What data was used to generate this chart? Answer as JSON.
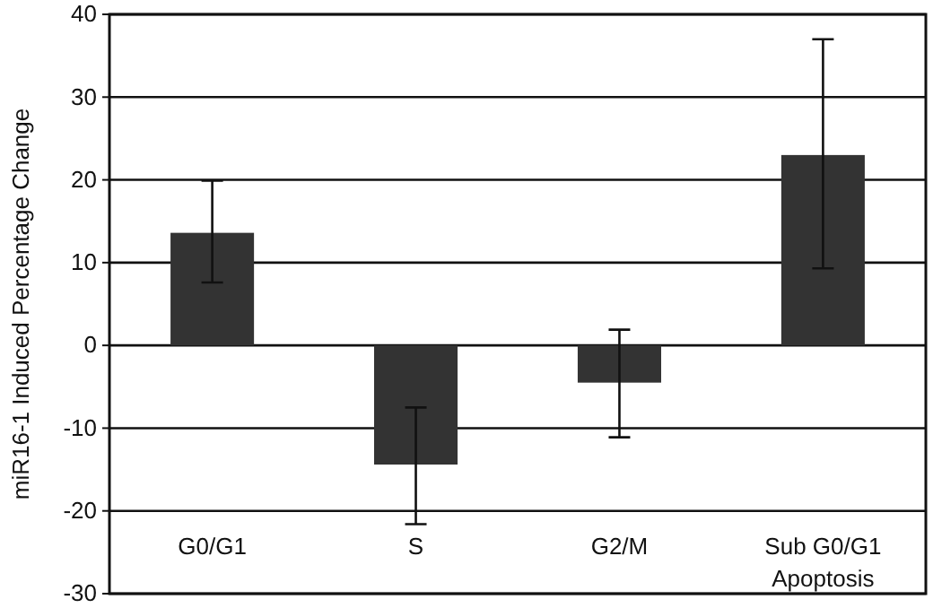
{
  "chart_data": {
    "type": "bar",
    "ylabel": "miR16-1 Induced Percentage Change",
    "categories": [
      "G0/G1",
      "S",
      "G2/M",
      "Sub G0/G1\nApoptosis"
    ],
    "values": [
      13.6,
      -14.4,
      -4.5,
      23.0
    ],
    "errors": [
      [
        7.6,
        19.9
      ],
      [
        -21.6,
        -7.5
      ],
      [
        -11.1,
        1.9
      ],
      [
        9.3,
        37.0
      ]
    ],
    "color": "#333333",
    "ylim": [
      -30,
      40
    ],
    "yticks": [
      -30,
      -20,
      -10,
      0,
      10,
      20,
      30,
      40
    ],
    "grid": "y"
  }
}
